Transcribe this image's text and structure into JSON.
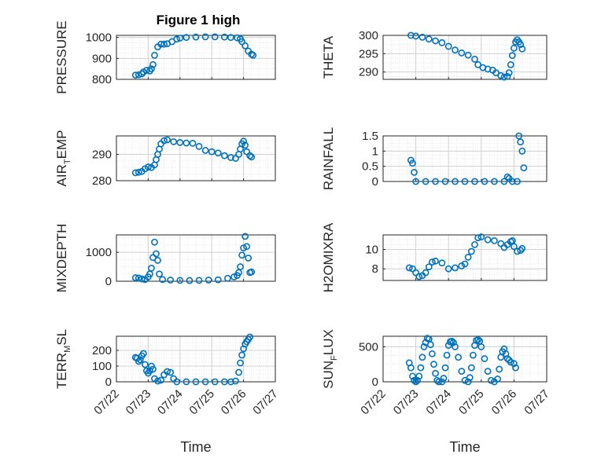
{
  "figure_title": "Figure 1 high",
  "colors": {
    "marker": "#0072BD",
    "axes": "#262626",
    "grid": "#dcdcdc",
    "background": "#ffffff"
  },
  "chart_data": [
    {
      "type": "scatter",
      "id": "p1",
      "ylabel": {
        "base": "PRESSURE"
      },
      "ylim": [
        800,
        1010
      ],
      "yticks": [
        800,
        900,
        1000
      ],
      "xlim": [
        0,
        5
      ],
      "points": [
        [
          0.6,
          820
        ],
        [
          0.7,
          822
        ],
        [
          0.8,
          826
        ],
        [
          0.85,
          835
        ],
        [
          0.95,
          843
        ],
        [
          1.05,
          840
        ],
        [
          1.1,
          850
        ],
        [
          1.15,
          870
        ],
        [
          1.2,
          915
        ],
        [
          1.3,
          955
        ],
        [
          1.4,
          968
        ],
        [
          1.5,
          968
        ],
        [
          1.6,
          970
        ],
        [
          1.75,
          980
        ],
        [
          1.9,
          992
        ],
        [
          2.0,
          997
        ],
        [
          2.2,
          1000
        ],
        [
          2.5,
          1002
        ],
        [
          2.8,
          1003
        ],
        [
          3.1,
          1003
        ],
        [
          3.4,
          1002
        ],
        [
          3.6,
          1000
        ],
        [
          3.8,
          998
        ],
        [
          3.9,
          993
        ],
        [
          3.95,
          980
        ],
        [
          4.05,
          960
        ],
        [
          4.15,
          935
        ],
        [
          4.25,
          920
        ],
        [
          4.3,
          915
        ]
      ]
    },
    {
      "type": "scatter",
      "id": "p2",
      "ylabel": {
        "base": "THETA"
      },
      "ylim": [
        288,
        300
      ],
      "yticks": [
        290,
        295,
        300
      ],
      "xlim": [
        0,
        5
      ],
      "points": [
        [
          0.85,
          300
        ],
        [
          1.0,
          299.8
        ],
        [
          1.2,
          299.5
        ],
        [
          1.4,
          299
        ],
        [
          1.6,
          298.5
        ],
        [
          1.8,
          298
        ],
        [
          2.0,
          297
        ],
        [
          2.2,
          296
        ],
        [
          2.4,
          295.2
        ],
        [
          2.6,
          294.6
        ],
        [
          2.8,
          293.5
        ],
        [
          2.9,
          292
        ],
        [
          3.05,
          291.2
        ],
        [
          3.2,
          290.8
        ],
        [
          3.35,
          290.5
        ],
        [
          3.45,
          289.8
        ],
        [
          3.6,
          289
        ],
        [
          3.7,
          288.6
        ],
        [
          3.8,
          288.8
        ],
        [
          3.85,
          289.8
        ],
        [
          3.9,
          292
        ],
        [
          3.95,
          294.5
        ],
        [
          4.0,
          296.5
        ],
        [
          4.05,
          298.2
        ],
        [
          4.1,
          298.8
        ],
        [
          4.15,
          298.2
        ],
        [
          4.2,
          297.5
        ],
        [
          4.25,
          296.3
        ]
      ]
    },
    {
      "type": "scatter",
      "id": "p3",
      "ylabel": {
        "base": "AIR",
        "sub": "T",
        "rest": "EMP"
      },
      "ylim": [
        280,
        297
      ],
      "yticks": [
        280,
        290
      ],
      "xlim": [
        0,
        5
      ],
      "points": [
        [
          0.6,
          283
        ],
        [
          0.7,
          283.2
        ],
        [
          0.8,
          283.5
        ],
        [
          0.9,
          284.5
        ],
        [
          1.0,
          285.2
        ],
        [
          1.1,
          285
        ],
        [
          1.2,
          286
        ],
        [
          1.25,
          288
        ],
        [
          1.3,
          290
        ],
        [
          1.35,
          292
        ],
        [
          1.4,
          294
        ],
        [
          1.5,
          295.2
        ],
        [
          1.6,
          295.5
        ],
        [
          1.8,
          294.8
        ],
        [
          2.0,
          294.5
        ],
        [
          2.2,
          294.3
        ],
        [
          2.4,
          294.2
        ],
        [
          2.6,
          293
        ],
        [
          2.8,
          291.5
        ],
        [
          3.0,
          291
        ],
        [
          3.2,
          290.5
        ],
        [
          3.4,
          289.5
        ],
        [
          3.6,
          288.8
        ],
        [
          3.75,
          288.5
        ],
        [
          3.85,
          290
        ],
        [
          3.9,
          292
        ],
        [
          3.95,
          294
        ],
        [
          4.0,
          295
        ],
        [
          4.05,
          293.5
        ],
        [
          4.1,
          291
        ],
        [
          4.2,
          289.5
        ],
        [
          4.25,
          289
        ]
      ]
    },
    {
      "type": "scatter",
      "id": "p4",
      "ylabel": {
        "base": "RAINFALL"
      },
      "ylim": [
        0,
        1.5
      ],
      "yticks": [
        0,
        0.5,
        1,
        1.5
      ],
      "yticklabels": [
        "0",
        "0.5",
        "1",
        "1.5"
      ],
      "xlim": [
        0,
        5
      ],
      "points": [
        [
          0.85,
          0.7
        ],
        [
          0.9,
          0.6
        ],
        [
          0.95,
          0.3
        ],
        [
          1.0,
          0
        ],
        [
          1.3,
          0
        ],
        [
          1.6,
          0
        ],
        [
          1.9,
          0
        ],
        [
          2.2,
          0
        ],
        [
          2.5,
          0
        ],
        [
          2.8,
          0
        ],
        [
          3.1,
          0
        ],
        [
          3.4,
          0
        ],
        [
          3.7,
          0
        ],
        [
          3.8,
          0.15
        ],
        [
          3.85,
          0.1
        ],
        [
          3.95,
          0
        ],
        [
          4.1,
          0
        ],
        [
          4.15,
          1.5
        ],
        [
          4.2,
          1.3
        ],
        [
          4.25,
          1.0
        ],
        [
          4.3,
          0.45
        ]
      ]
    },
    {
      "type": "scatter",
      "id": "p5",
      "ylabel": {
        "base": "MIXDEPTH"
      },
      "ylim": [
        0,
        1600
      ],
      "yticks": [
        0,
        1000
      ],
      "xlim": [
        0,
        5
      ],
      "points": [
        [
          0.6,
          120
        ],
        [
          0.7,
          110
        ],
        [
          0.8,
          80
        ],
        [
          0.9,
          60
        ],
        [
          1.0,
          150
        ],
        [
          1.05,
          250
        ],
        [
          1.1,
          450
        ],
        [
          1.15,
          820
        ],
        [
          1.2,
          1350
        ],
        [
          1.25,
          950
        ],
        [
          1.3,
          720
        ],
        [
          1.35,
          250
        ],
        [
          1.45,
          60
        ],
        [
          1.7,
          40
        ],
        [
          2.0,
          30
        ],
        [
          2.3,
          25
        ],
        [
          2.6,
          30
        ],
        [
          2.9,
          40
        ],
        [
          3.2,
          50
        ],
        [
          3.5,
          100
        ],
        [
          3.7,
          150
        ],
        [
          3.8,
          200
        ],
        [
          3.85,
          300
        ],
        [
          3.9,
          500
        ],
        [
          3.95,
          900
        ],
        [
          4.0,
          1150
        ],
        [
          4.05,
          1550
        ],
        [
          4.1,
          1200
        ],
        [
          4.15,
          800
        ],
        [
          4.2,
          300
        ],
        [
          4.25,
          320
        ]
      ]
    },
    {
      "type": "scatter",
      "id": "p6",
      "ylabel": {
        "base": "H2OMIXRA"
      },
      "ylim": [
        6.8,
        11.5
      ],
      "yticks": [
        8,
        10
      ],
      "xlim": [
        0,
        5
      ],
      "points": [
        [
          0.8,
          8.1
        ],
        [
          0.9,
          8.0
        ],
        [
          1.0,
          7.6
        ],
        [
          1.1,
          7.2
        ],
        [
          1.2,
          7.3
        ],
        [
          1.3,
          7.6
        ],
        [
          1.4,
          8.2
        ],
        [
          1.5,
          8.7
        ],
        [
          1.6,
          8.8
        ],
        [
          1.8,
          8.6
        ],
        [
          2.0,
          8.0
        ],
        [
          2.2,
          8.1
        ],
        [
          2.4,
          8.3
        ],
        [
          2.5,
          8.5
        ],
        [
          2.6,
          9.2
        ],
        [
          2.7,
          9.8
        ],
        [
          2.8,
          10.5
        ],
        [
          2.9,
          11.2
        ],
        [
          3.0,
          11.3
        ],
        [
          3.2,
          11.0
        ],
        [
          3.4,
          10.9
        ],
        [
          3.6,
          10.6
        ],
        [
          3.7,
          10.2
        ],
        [
          3.8,
          10.5
        ],
        [
          3.9,
          10.8
        ],
        [
          3.95,
          10.9
        ],
        [
          4.0,
          10.3
        ],
        [
          4.1,
          9.8
        ],
        [
          4.2,
          9.9
        ],
        [
          4.25,
          10.1
        ]
      ]
    },
    {
      "type": "scatter",
      "id": "p7",
      "ylabel": {
        "base": "TERR",
        "sub": "M",
        "rest": "SL"
      },
      "ylim": [
        0,
        290
      ],
      "yticks": [
        0,
        100,
        200
      ],
      "xlim": [
        0,
        5
      ],
      "points": [
        [
          0.6,
          155
        ],
        [
          0.65,
          150
        ],
        [
          0.7,
          130
        ],
        [
          0.75,
          140
        ],
        [
          0.8,
          165
        ],
        [
          0.85,
          180
        ],
        [
          0.9,
          110
        ],
        [
          0.95,
          70
        ],
        [
          1.0,
          55
        ],
        [
          1.05,
          70
        ],
        [
          1.1,
          100
        ],
        [
          1.15,
          80
        ],
        [
          1.2,
          20
        ],
        [
          1.3,
          5
        ],
        [
          1.4,
          10
        ],
        [
          1.5,
          45
        ],
        [
          1.6,
          65
        ],
        [
          1.7,
          60
        ],
        [
          1.8,
          20
        ],
        [
          1.9,
          0
        ],
        [
          2.2,
          0
        ],
        [
          2.5,
          0
        ],
        [
          2.8,
          0
        ],
        [
          3.1,
          0
        ],
        [
          3.4,
          0
        ],
        [
          3.6,
          0
        ],
        [
          3.75,
          5
        ],
        [
          3.85,
          60
        ],
        [
          3.9,
          120
        ],
        [
          3.95,
          170
        ],
        [
          4.0,
          210
        ],
        [
          4.05,
          240
        ],
        [
          4.1,
          255
        ],
        [
          4.15,
          270
        ],
        [
          4.2,
          285
        ]
      ]
    },
    {
      "type": "scatter",
      "id": "p8",
      "ylabel": {
        "base": "SUN",
        "sub": "F",
        "rest": "LUX"
      },
      "ylim": [
        0,
        650
      ],
      "yticks": [
        0,
        500
      ],
      "xlim": [
        0,
        5
      ],
      "points": [
        [
          0.8,
          270
        ],
        [
          0.85,
          200
        ],
        [
          0.9,
          80
        ],
        [
          0.95,
          20
        ],
        [
          1.0,
          0
        ],
        [
          1.05,
          20
        ],
        [
          1.1,
          80
        ],
        [
          1.15,
          200
        ],
        [
          1.2,
          350
        ],
        [
          1.25,
          500
        ],
        [
          1.3,
          560
        ],
        [
          1.35,
          620
        ],
        [
          1.4,
          610
        ],
        [
          1.45,
          530
        ],
        [
          1.5,
          400
        ],
        [
          1.55,
          250
        ],
        [
          1.6,
          120
        ],
        [
          1.65,
          20
        ],
        [
          1.7,
          0
        ],
        [
          1.8,
          0
        ],
        [
          1.85,
          50
        ],
        [
          1.9,
          200
        ],
        [
          1.95,
          380
        ],
        [
          2.0,
          520
        ],
        [
          2.05,
          570
        ],
        [
          2.1,
          580
        ],
        [
          2.15,
          560
        ],
        [
          2.2,
          500
        ],
        [
          2.3,
          350
        ],
        [
          2.4,
          150
        ],
        [
          2.5,
          20
        ],
        [
          2.6,
          0
        ],
        [
          2.65,
          60
        ],
        [
          2.7,
          200
        ],
        [
          2.75,
          380
        ],
        [
          2.8,
          520
        ],
        [
          2.85,
          590
        ],
        [
          2.9,
          600
        ],
        [
          2.95,
          580
        ],
        [
          3.0,
          500
        ],
        [
          3.1,
          330
        ],
        [
          3.2,
          150
        ],
        [
          3.3,
          20
        ],
        [
          3.4,
          0
        ],
        [
          3.5,
          40
        ],
        [
          3.55,
          180
        ],
        [
          3.6,
          350
        ],
        [
          3.65,
          430
        ],
        [
          3.7,
          470
        ],
        [
          3.75,
          400
        ],
        [
          3.8,
          330
        ],
        [
          3.85,
          310
        ],
        [
          3.9,
          280
        ],
        [
          4.0,
          260
        ],
        [
          4.05,
          200
        ]
      ]
    }
  ],
  "xaxis": {
    "ticklabels": [
      "07/22",
      "07/23",
      "07/24",
      "07/25",
      "07/26",
      "07/27"
    ],
    "label": "Time"
  }
}
